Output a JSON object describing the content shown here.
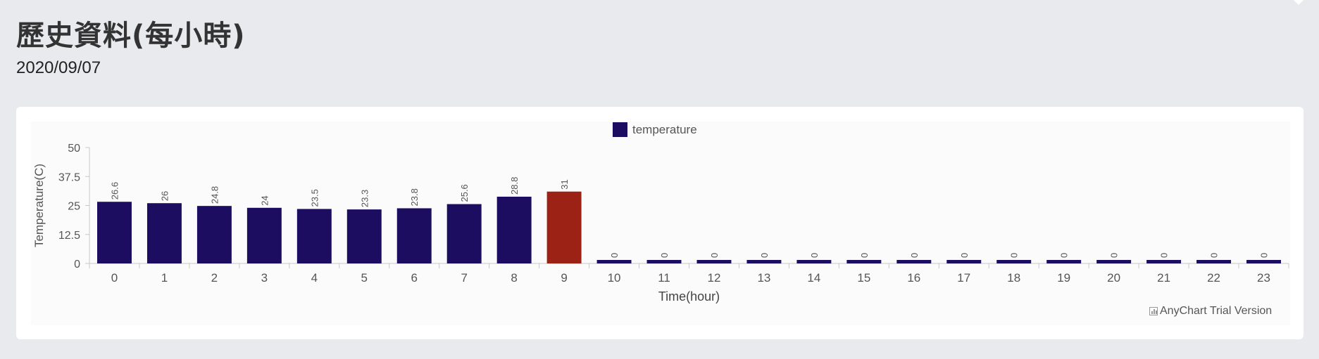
{
  "page": {
    "title": "歷史資料(每小時)",
    "date": "2020/09/07"
  },
  "credits": {
    "text": "AnyChart Trial Version",
    "icon": "chart-icon"
  },
  "colors": {
    "bar": "#1c0d61",
    "highlight": "#9b2214",
    "axis": "#c8c8c8",
    "text": "#555555"
  },
  "chart_data": {
    "type": "bar",
    "title": "",
    "xlabel": "Time(hour)",
    "ylabel": "Temperature(C)",
    "ylim": [
      0,
      50
    ],
    "yticks": [
      "0",
      "12.5",
      "25",
      "37.5",
      "50"
    ],
    "legend": {
      "position": "top-center",
      "entries": [
        "temperature"
      ]
    },
    "grid": false,
    "categories": [
      "0",
      "1",
      "2",
      "3",
      "4",
      "5",
      "6",
      "7",
      "8",
      "9",
      "10",
      "11",
      "12",
      "13",
      "14",
      "15",
      "16",
      "17",
      "18",
      "19",
      "20",
      "21",
      "22",
      "23"
    ],
    "series": [
      {
        "name": "temperature",
        "values": [
          26.6,
          26,
          24.8,
          24,
          23.5,
          23.3,
          23.8,
          25.6,
          28.8,
          31,
          0,
          0,
          0,
          0,
          0,
          0,
          0,
          0,
          0,
          0,
          0,
          0,
          0,
          0
        ],
        "labels": [
          "26.6",
          "26",
          "24.8",
          "24",
          "23.5",
          "23.3",
          "23.8",
          "25.6",
          "28.8",
          "31",
          "0",
          "0",
          "0",
          "0",
          "0",
          "0",
          "0",
          "0",
          "0",
          "0",
          "0",
          "0",
          "0",
          "0"
        ],
        "highlight_category": "9"
      }
    ]
  }
}
